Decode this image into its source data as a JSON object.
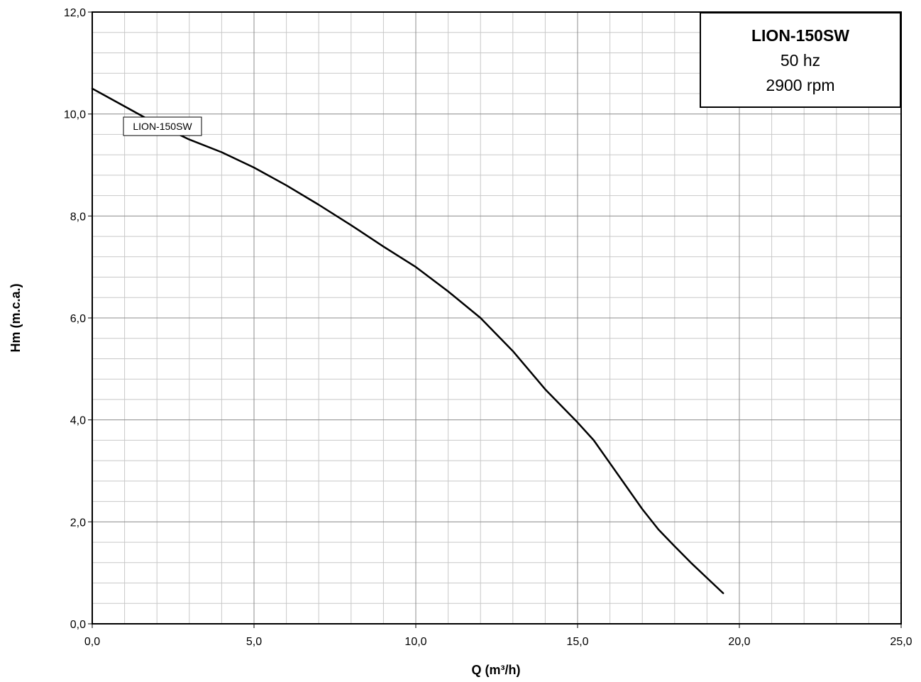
{
  "chart_data": {
    "type": "line",
    "xlabel": "Q (m³/h)",
    "ylabel": "Hm (m.c.a.)",
    "xlim": [
      0,
      25
    ],
    "ylim": [
      0,
      12
    ],
    "x_ticks": [
      "0,0",
      "5,0",
      "10,0",
      "15,0",
      "20,0",
      "25,0"
    ],
    "y_ticks": [
      "0,0",
      "2,0",
      "4,0",
      "6,0",
      "8,0",
      "10,0",
      "12,0"
    ],
    "grid": true,
    "series": [
      {
        "name": "LION-150SW",
        "x": [
          0,
          1,
          2,
          3,
          4,
          5,
          6,
          7,
          8,
          9,
          10,
          11,
          12,
          13,
          14,
          15,
          15.5,
          16,
          16.5,
          17,
          17.5,
          18,
          18.5,
          19,
          19.5
        ],
        "y": [
          10.5,
          10.15,
          9.8,
          9.5,
          9.25,
          8.95,
          8.6,
          8.22,
          7.82,
          7.4,
          7.0,
          6.52,
          6.0,
          5.35,
          4.6,
          3.95,
          3.6,
          3.15,
          2.7,
          2.25,
          1.85,
          1.52,
          1.2,
          0.9,
          0.6
        ],
        "color": "#000000"
      }
    ],
    "info_box": {
      "model": "LION-150SW",
      "frequency": "50 hz",
      "speed": "2900 rpm"
    }
  }
}
